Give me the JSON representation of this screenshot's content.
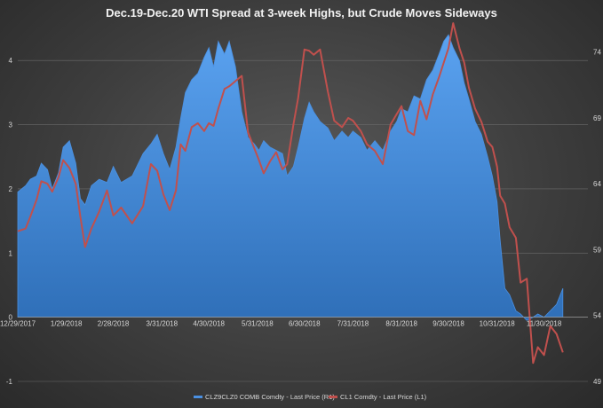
{
  "chart_data": {
    "type": "area",
    "title": "Dec.19-Dec.20 WTI Spread at 3-week Highs, but Crude Moves Sideways",
    "x_axis": {
      "type": "date",
      "range": [
        "2017-12-29",
        "2018-12-28"
      ],
      "tick_labels": [
        "12/29/2017",
        "1/29/2018",
        "2/28/2018",
        "3/31/2018",
        "4/30/2018",
        "5/31/2018",
        "6/30/2018",
        "7/31/2018",
        "8/31/2018",
        "9/30/2018",
        "10/31/2018",
        "11/30/2018"
      ]
    },
    "y_axis_left": {
      "ylim": [
        -1,
        4.5
      ],
      "tick_labels": [
        "-1",
        "0",
        "1",
        "2",
        "3",
        "4"
      ]
    },
    "y_axis_right": {
      "ylim": [
        49,
        75.8
      ],
      "tick_labels": [
        "49",
        "54",
        "59",
        "64",
        "69",
        "74"
      ]
    },
    "grid": true,
    "legend_position": "bottom",
    "series": [
      {
        "name": "CLZ9CLZ0 COMB Comdty - Last Price (R1)",
        "type": "area",
        "axis": "left",
        "color": "#4a90e2",
        "points": [
          [
            "2017-12-29",
            1.95
          ],
          [
            "2018-01-03",
            2.05
          ],
          [
            "2018-01-06",
            2.15
          ],
          [
            "2018-01-10",
            2.2
          ],
          [
            "2018-01-13",
            2.4
          ],
          [
            "2018-01-17",
            2.3
          ],
          [
            "2018-01-20",
            2.0
          ],
          [
            "2018-01-24",
            2.25
          ],
          [
            "2018-01-27",
            2.65
          ],
          [
            "2018-01-31",
            2.75
          ],
          [
            "2018-02-04",
            2.4
          ],
          [
            "2018-02-07",
            1.85
          ],
          [
            "2018-02-10",
            1.75
          ],
          [
            "2018-02-14",
            2.05
          ],
          [
            "2018-02-19",
            2.15
          ],
          [
            "2018-02-24",
            2.1
          ],
          [
            "2018-02-28",
            2.35
          ],
          [
            "2018-03-05",
            2.1
          ],
          [
            "2018-03-12",
            2.2
          ],
          [
            "2018-03-19",
            2.55
          ],
          [
            "2018-03-24",
            2.7
          ],
          [
            "2018-03-28",
            2.85
          ],
          [
            "2018-04-01",
            2.55
          ],
          [
            "2018-04-05",
            2.3
          ],
          [
            "2018-04-09",
            2.65
          ],
          [
            "2018-04-12",
            3.1
          ],
          [
            "2018-04-15",
            3.5
          ],
          [
            "2018-04-19",
            3.7
          ],
          [
            "2018-04-23",
            3.8
          ],
          [
            "2018-04-27",
            4.05
          ],
          [
            "2018-04-30",
            4.2
          ],
          [
            "2018-05-03",
            3.9
          ],
          [
            "2018-05-06",
            4.3
          ],
          [
            "2018-05-10",
            4.1
          ],
          [
            "2018-05-13",
            4.3
          ],
          [
            "2018-05-17",
            3.9
          ],
          [
            "2018-05-21",
            3.2
          ],
          [
            "2018-05-25",
            2.8
          ],
          [
            "2018-05-29",
            2.7
          ],
          [
            "2018-06-01",
            2.6
          ],
          [
            "2018-06-04",
            2.75
          ],
          [
            "2018-06-08",
            2.65
          ],
          [
            "2018-06-12",
            2.6
          ],
          [
            "2018-06-16",
            2.55
          ],
          [
            "2018-06-19",
            2.2
          ],
          [
            "2018-06-23",
            2.35
          ],
          [
            "2018-06-26",
            2.65
          ],
          [
            "2018-06-30",
            3.1
          ],
          [
            "2018-07-03",
            3.35
          ],
          [
            "2018-07-06",
            3.2
          ],
          [
            "2018-07-10",
            3.05
          ],
          [
            "2018-07-15",
            2.95
          ],
          [
            "2018-07-19",
            2.75
          ],
          [
            "2018-07-24",
            2.9
          ],
          [
            "2018-07-28",
            2.8
          ],
          [
            "2018-07-31",
            2.9
          ],
          [
            "2018-08-05",
            2.8
          ],
          [
            "2018-08-09",
            2.6
          ],
          [
            "2018-08-14",
            2.75
          ],
          [
            "2018-08-19",
            2.6
          ],
          [
            "2018-08-24",
            2.9
          ],
          [
            "2018-08-28",
            3.05
          ],
          [
            "2018-08-31",
            3.25
          ],
          [
            "2018-09-04",
            3.2
          ],
          [
            "2018-09-08",
            3.45
          ],
          [
            "2018-09-12",
            3.4
          ],
          [
            "2018-09-16",
            3.7
          ],
          [
            "2018-09-20",
            3.85
          ],
          [
            "2018-09-24",
            4.1
          ],
          [
            "2018-09-27",
            4.3
          ],
          [
            "2018-09-30",
            4.4
          ],
          [
            "2018-10-03",
            4.2
          ],
          [
            "2018-10-07",
            4.0
          ],
          [
            "2018-10-10",
            3.65
          ],
          [
            "2018-10-13",
            3.4
          ],
          [
            "2018-10-17",
            3.05
          ],
          [
            "2018-10-21",
            2.85
          ],
          [
            "2018-10-25",
            2.5
          ],
          [
            "2018-10-28",
            2.2
          ],
          [
            "2018-10-31",
            1.8
          ],
          [
            "2018-11-02",
            1.2
          ],
          [
            "2018-11-05",
            0.45
          ],
          [
            "2018-11-08",
            0.35
          ],
          [
            "2018-11-12",
            0.1
          ],
          [
            "2018-11-15",
            0.05
          ],
          [
            "2018-11-19",
            -0.05
          ],
          [
            "2018-11-23",
            0.0
          ],
          [
            "2018-11-26",
            0.05
          ],
          [
            "2018-11-30",
            0.0
          ],
          [
            "2018-12-04",
            0.1
          ],
          [
            "2018-12-08",
            0.2
          ],
          [
            "2018-12-12",
            0.45
          ]
        ]
      },
      {
        "name": "CL1 Comdty - Last Price (L1)",
        "type": "line",
        "axis": "right",
        "color": "#c0504d",
        "points": [
          [
            "2017-12-29",
            60.4
          ],
          [
            "2018-01-03",
            60.6
          ],
          [
            "2018-01-06",
            61.5
          ],
          [
            "2018-01-10",
            62.8
          ],
          [
            "2018-01-13",
            64.2
          ],
          [
            "2018-01-17",
            64.0
          ],
          [
            "2018-01-20",
            63.4
          ],
          [
            "2018-01-24",
            64.5
          ],
          [
            "2018-01-27",
            65.8
          ],
          [
            "2018-01-31",
            65.2
          ],
          [
            "2018-02-04",
            64.0
          ],
          [
            "2018-02-07",
            61.5
          ],
          [
            "2018-02-10",
            59.2
          ],
          [
            "2018-02-14",
            60.6
          ],
          [
            "2018-02-19",
            61.9
          ],
          [
            "2018-02-24",
            63.5
          ],
          [
            "2018-02-28",
            61.6
          ],
          [
            "2018-03-05",
            62.2
          ],
          [
            "2018-03-12",
            61.0
          ],
          [
            "2018-03-19",
            62.3
          ],
          [
            "2018-03-24",
            65.5
          ],
          [
            "2018-03-28",
            65.0
          ],
          [
            "2018-04-01",
            63.2
          ],
          [
            "2018-04-05",
            62.0
          ],
          [
            "2018-04-09",
            63.5
          ],
          [
            "2018-04-12",
            67.0
          ],
          [
            "2018-04-15",
            66.5
          ],
          [
            "2018-04-19",
            68.3
          ],
          [
            "2018-04-23",
            68.6
          ],
          [
            "2018-04-27",
            68.0
          ],
          [
            "2018-04-30",
            68.6
          ],
          [
            "2018-05-03",
            68.4
          ],
          [
            "2018-05-06",
            69.7
          ],
          [
            "2018-05-10",
            71.2
          ],
          [
            "2018-05-13",
            71.4
          ],
          [
            "2018-05-17",
            71.8
          ],
          [
            "2018-05-21",
            72.2
          ],
          [
            "2018-05-25",
            67.9
          ],
          [
            "2018-05-29",
            66.7
          ],
          [
            "2018-06-01",
            65.8
          ],
          [
            "2018-06-04",
            64.8
          ],
          [
            "2018-06-08",
            65.7
          ],
          [
            "2018-06-12",
            66.4
          ],
          [
            "2018-06-16",
            65.1
          ],
          [
            "2018-06-19",
            65.5
          ],
          [
            "2018-06-23",
            68.5
          ],
          [
            "2018-06-26",
            70.5
          ],
          [
            "2018-06-30",
            74.2
          ],
          [
            "2018-07-03",
            74.1
          ],
          [
            "2018-07-06",
            73.8
          ],
          [
            "2018-07-10",
            74.2
          ],
          [
            "2018-07-15",
            71.0
          ],
          [
            "2018-07-19",
            68.8
          ],
          [
            "2018-07-24",
            68.3
          ],
          [
            "2018-07-28",
            69.0
          ],
          [
            "2018-07-31",
            68.8
          ],
          [
            "2018-08-05",
            68.0
          ],
          [
            "2018-08-09",
            67.0
          ],
          [
            "2018-08-14",
            66.5
          ],
          [
            "2018-08-19",
            65.5
          ],
          [
            "2018-08-24",
            68.5
          ],
          [
            "2018-08-28",
            69.3
          ],
          [
            "2018-08-31",
            69.9
          ],
          [
            "2018-09-04",
            68.0
          ],
          [
            "2018-09-08",
            67.7
          ],
          [
            "2018-09-12",
            70.3
          ],
          [
            "2018-09-16",
            68.9
          ],
          [
            "2018-09-20",
            70.8
          ],
          [
            "2018-09-24",
            72.1
          ],
          [
            "2018-09-27",
            73.2
          ],
          [
            "2018-09-30",
            74.3
          ],
          [
            "2018-10-03",
            76.2
          ],
          [
            "2018-10-07",
            74.3
          ],
          [
            "2018-10-10",
            73.2
          ],
          [
            "2018-10-13",
            71.3
          ],
          [
            "2018-10-17",
            69.7
          ],
          [
            "2018-10-21",
            68.7
          ],
          [
            "2018-10-25",
            67.2
          ],
          [
            "2018-10-28",
            66.8
          ],
          [
            "2018-10-31",
            65.3
          ],
          [
            "2018-11-02",
            63.1
          ],
          [
            "2018-11-05",
            62.5
          ],
          [
            "2018-11-08",
            60.7
          ],
          [
            "2018-11-12",
            59.9
          ],
          [
            "2018-11-15",
            56.5
          ],
          [
            "2018-11-19",
            56.8
          ],
          [
            "2018-11-23",
            50.4
          ],
          [
            "2018-11-26",
            51.6
          ],
          [
            "2018-11-30",
            51.0
          ],
          [
            "2018-12-04",
            53.2
          ],
          [
            "2018-12-08",
            52.6
          ],
          [
            "2018-12-12",
            51.2
          ]
        ]
      }
    ]
  }
}
